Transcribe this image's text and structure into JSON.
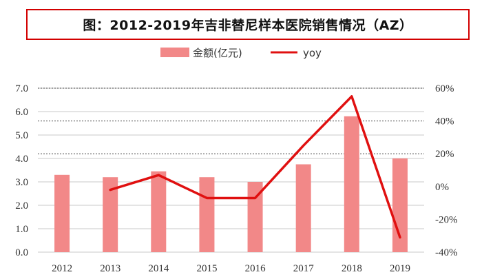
{
  "chart_data": {
    "type": "bar",
    "title": "图：2012-2019年吉非替尼样本医院销售情况（AZ）",
    "categories": [
      "2012",
      "2013",
      "2014",
      "2015",
      "2016",
      "2017",
      "2018",
      "2019"
    ],
    "series": [
      {
        "name": "金额(亿元)",
        "type": "bar",
        "axis": "left",
        "values": [
          3.3,
          3.2,
          3.45,
          3.2,
          3.0,
          3.75,
          5.8,
          4.0
        ]
      },
      {
        "name": "yoy",
        "type": "line",
        "axis": "right",
        "unit": "%",
        "values": [
          null,
          -2,
          7,
          -7,
          -7,
          25,
          55,
          -31
        ]
      }
    ],
    "y_left": {
      "ylim": [
        0,
        7
      ],
      "ticks": [
        "0.0",
        "1.0",
        "2.0",
        "3.0",
        "4.0",
        "5.0",
        "6.0",
        "7.0"
      ]
    },
    "y_right": {
      "ylim": [
        -40,
        60
      ],
      "ticks": [
        "-40%",
        "-20%",
        "0%",
        "20%",
        "40%",
        "60%"
      ]
    },
    "legend_position": "top",
    "grid": true,
    "colors": {
      "bar": "#f28888",
      "line": "#e01010",
      "title_border": "#d20000"
    }
  }
}
